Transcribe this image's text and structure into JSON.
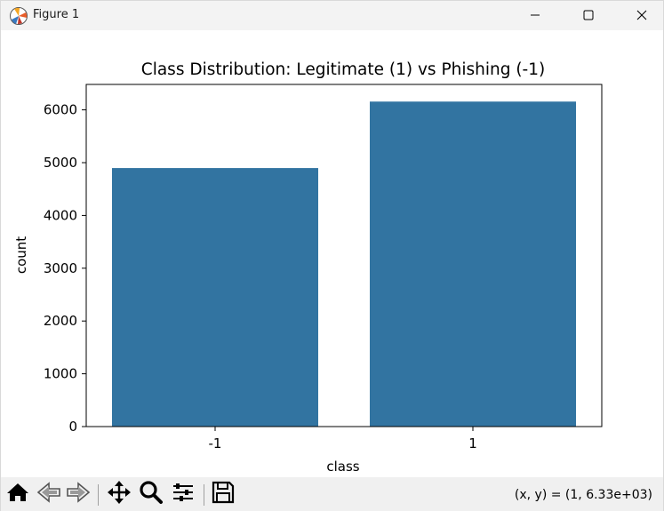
{
  "window": {
    "title": "Figure 1"
  },
  "toolbar": {
    "coords_readout": "(x, y) = (1, 6.33e+03)",
    "tools": [
      "home-icon",
      "back-icon",
      "forward-icon",
      "pan-icon",
      "zoom-icon",
      "configure-subplots-icon",
      "save-icon"
    ]
  },
  "chart_data": {
    "type": "bar",
    "title": "Class Distribution: Legitimate (1) vs Phishing (-1)",
    "xlabel": "class",
    "ylabel": "count",
    "categories": [
      "-1",
      "1"
    ],
    "values": [
      4898,
      6157
    ],
    "ylim": [
      0,
      6482
    ],
    "yticks": [
      0,
      1000,
      2000,
      3000,
      4000,
      5000,
      6000
    ],
    "bar_color": "#3274a1",
    "grid": false,
    "legend": "none"
  }
}
